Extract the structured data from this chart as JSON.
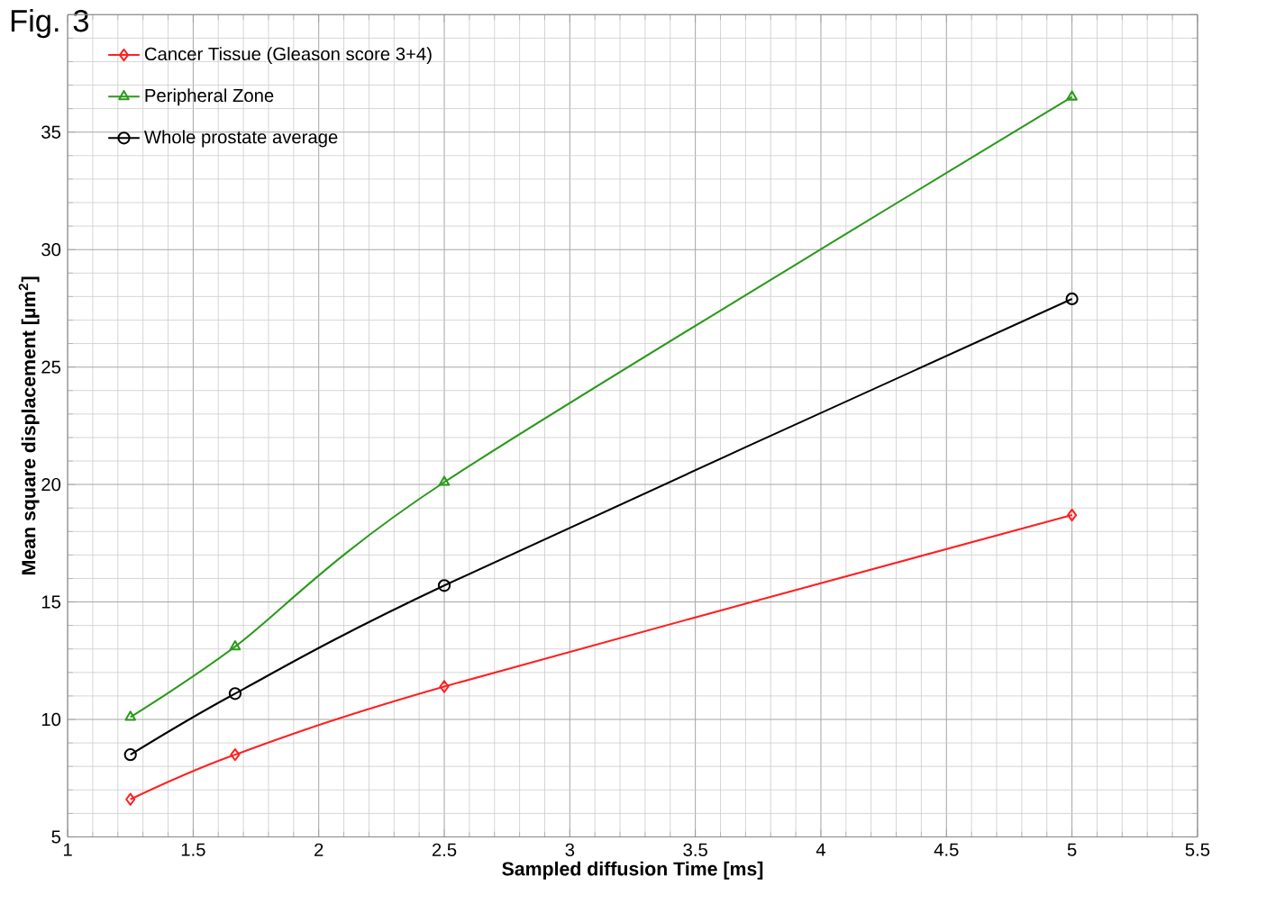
{
  "chart_data": {
    "type": "line",
    "title": "Fig. 3",
    "xlabel": "Sampled diffusion Time [ms]",
    "ylabel": "Mean square displacement [µm$^{2}$]",
    "x": [
      1.25,
      1.667,
      2.5,
      5
    ],
    "series": [
      {
        "name": "Cancer Tissue (Gleason score 3+4)",
        "color": "#ff2020",
        "marker": "diamond",
        "values": [
          6.6,
          8.5,
          11.4,
          18.7
        ]
      },
      {
        "name": "Peripheral Zone",
        "color": "#2a9a1a",
        "marker": "triangle",
        "values": [
          10.1,
          13.1,
          20.1,
          36.5
        ]
      },
      {
        "name": "Whole prostate average",
        "color": "#000000",
        "marker": "circle",
        "values": [
          8.5,
          11.1,
          15.7,
          27.9
        ]
      }
    ],
    "xlim": [
      1,
      5.5
    ],
    "xticks": [
      1,
      1.5,
      2,
      2.5,
      3,
      3.5,
      4,
      4.5,
      5,
      5.5
    ],
    "ylim": [
      5,
      40
    ],
    "yticks": [
      5,
      10,
      15,
      20,
      25,
      30,
      35,
      {
        "value": 40,
        "label": null
      }
    ],
    "grid": true,
    "legend": "top left",
    "line_style": "solid"
  }
}
